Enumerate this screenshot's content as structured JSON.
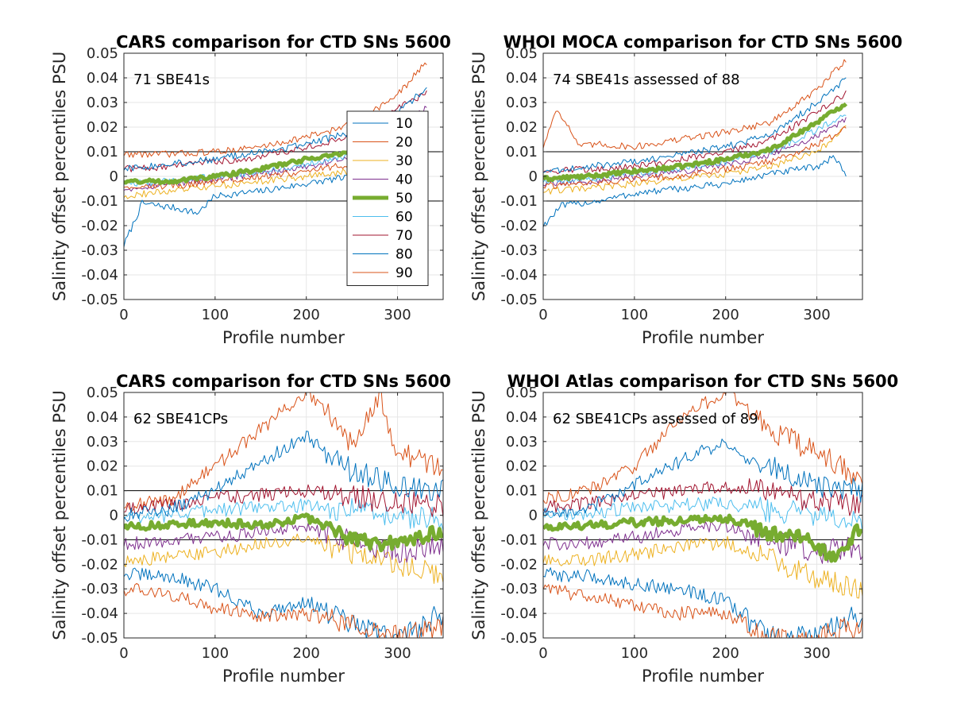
{
  "figure": {
    "palette": {
      "10": "#0072BD",
      "20": "#D95319",
      "30": "#EDB120",
      "40": "#7E2F8E",
      "50": "#77AC30",
      "60": "#4DBEEE",
      "70": "#A2142F",
      "80": "#0072BD",
      "90": "#D95319"
    },
    "axis_color": "#262626",
    "grid_color": "#e6e6e6",
    "ref_line_color": "#000000"
  },
  "chart_data": [
    {
      "type": "line",
      "title": "CARS comparison for CTD SNs 5600",
      "annotation": "71 SBE41s",
      "xlabel": "Profile number",
      "ylabel": "Salinity offset percentiles PSU",
      "xlim": [
        0,
        350
      ],
      "ylim": [
        -0.05,
        0.05
      ],
      "xticks": [
        "0",
        "100",
        "200",
        "300"
      ],
      "yticks": [
        "0.05",
        "0.04",
        "0.03",
        "0.02",
        "0.01",
        "0",
        "-0.01",
        "-0.02",
        "-0.03",
        "-0.04",
        "-0.05"
      ],
      "ref_lines": [
        0.01,
        -0.01
      ],
      "legend": {
        "entries": [
          "10",
          "20",
          "30",
          "40",
          "50",
          "60",
          "70",
          "80",
          "90"
        ],
        "placement": "center-right"
      },
      "x_end": 333,
      "series": [
        {
          "name": "10",
          "x": [
            0,
            20,
            60,
            80,
            100,
            150,
            200,
            250,
            300,
            333
          ],
          "values": [
            -0.028,
            -0.011,
            -0.013,
            -0.015,
            -0.008,
            -0.006,
            -0.003,
            0.0,
            0.004,
            0.006
          ]
        },
        {
          "name": "20",
          "x": [
            0,
            50,
            100,
            150,
            200,
            250,
            300,
            333
          ],
          "values": [
            0.009,
            0.009,
            0.01,
            0.012,
            0.016,
            0.021,
            0.033,
            0.047
          ]
        },
        {
          "name": "30",
          "x": [
            0,
            50,
            100,
            150,
            200,
            250,
            300,
            333
          ],
          "values": [
            -0.008,
            -0.006,
            -0.004,
            -0.002,
            0.0,
            0.002,
            0.005,
            0.008
          ]
        },
        {
          "name": "40",
          "x": [
            0,
            50,
            100,
            150,
            200,
            250,
            300,
            333
          ],
          "values": [
            -0.005,
            -0.003,
            -0.001,
            0.001,
            0.004,
            0.008,
            0.02,
            0.028
          ]
        },
        {
          "name": "50",
          "x": [
            0,
            50,
            100,
            150,
            200,
            250,
            300,
            333
          ],
          "values": [
            -0.002,
            -0.002,
            0.0,
            0.003,
            0.007,
            0.01,
            0.015,
            0.022
          ]
        },
        {
          "name": "60",
          "x": [
            0,
            50,
            100,
            150,
            200,
            250,
            300,
            333
          ],
          "values": [
            -0.003,
            -0.002,
            0.0,
            0.002,
            0.005,
            0.009,
            0.013,
            0.016
          ]
        },
        {
          "name": "70",
          "x": [
            0,
            50,
            100,
            150,
            200,
            250,
            300,
            333
          ],
          "values": [
            0.003,
            0.004,
            0.006,
            0.008,
            0.012,
            0.016,
            0.028,
            0.034
          ]
        },
        {
          "name": "80",
          "x": [
            0,
            50,
            100,
            150,
            200,
            250,
            300,
            333
          ],
          "values": [
            0.003,
            0.005,
            0.007,
            0.01,
            0.013,
            0.018,
            0.026,
            0.036
          ]
        },
        {
          "name": "90",
          "x": [
            0,
            50,
            100,
            150,
            200,
            250,
            300,
            333
          ],
          "values": [
            -0.004,
            -0.004,
            -0.002,
            0.0,
            0.002,
            0.005,
            0.009,
            0.012
          ]
        }
      ]
    },
    {
      "type": "line",
      "title": "WHOI MOCA comparison for CTD SNs 5600",
      "annotation": "74 SBE41s assessed of 88",
      "xlabel": "Profile number",
      "ylabel": "Salinity offset percentiles PSU",
      "xlim": [
        0,
        350
      ],
      "ylim": [
        -0.05,
        0.05
      ],
      "xticks": [
        "0",
        "100",
        "200",
        "300"
      ],
      "yticks": [
        "0.05",
        "0.04",
        "0.03",
        "0.02",
        "0.01",
        "0",
        "-0.01",
        "-0.02",
        "-0.03",
        "-0.04",
        "-0.05"
      ],
      "ref_lines": [
        0.01,
        -0.01
      ],
      "x_end": 333,
      "series": [
        {
          "name": "10",
          "x": [
            0,
            20,
            60,
            100,
            150,
            200,
            250,
            300,
            320,
            333
          ],
          "values": [
            -0.02,
            -0.012,
            -0.01,
            -0.007,
            -0.005,
            -0.003,
            0.001,
            0.004,
            0.008,
            0.0
          ]
        },
        {
          "name": "20",
          "x": [
            0,
            15,
            40,
            60,
            100,
            150,
            200,
            250,
            300,
            333
          ],
          "values": [
            0.012,
            0.028,
            0.012,
            0.013,
            0.012,
            0.015,
            0.018,
            0.022,
            0.035,
            0.048
          ]
        },
        {
          "name": "30",
          "x": [
            0,
            50,
            100,
            150,
            200,
            250,
            300,
            333
          ],
          "values": [
            -0.006,
            -0.005,
            -0.003,
            -0.001,
            0.001,
            0.004,
            0.01,
            0.02
          ]
        },
        {
          "name": "40",
          "x": [
            0,
            50,
            100,
            150,
            200,
            250,
            300,
            333
          ],
          "values": [
            -0.003,
            -0.002,
            0.0,
            0.002,
            0.005,
            0.009,
            0.016,
            0.024
          ]
        },
        {
          "name": "50",
          "x": [
            0,
            50,
            100,
            150,
            200,
            250,
            300,
            333
          ],
          "values": [
            -0.001,
            0.0,
            0.002,
            0.004,
            0.007,
            0.011,
            0.022,
            0.03
          ]
        },
        {
          "name": "60",
          "x": [
            0,
            50,
            100,
            150,
            200,
            250,
            300,
            333
          ],
          "values": [
            -0.002,
            -0.001,
            0.001,
            0.003,
            0.006,
            0.01,
            0.019,
            0.026
          ]
        },
        {
          "name": "70",
          "x": [
            0,
            50,
            100,
            150,
            200,
            250,
            300,
            333
          ],
          "values": [
            0.002,
            0.003,
            0.004,
            0.007,
            0.01,
            0.015,
            0.026,
            0.034
          ]
        },
        {
          "name": "80",
          "x": [
            0,
            50,
            100,
            150,
            200,
            250,
            300,
            333
          ],
          "values": [
            0.002,
            0.004,
            0.006,
            0.009,
            0.012,
            0.017,
            0.03,
            0.04
          ]
        },
        {
          "name": "90",
          "x": [
            0,
            50,
            100,
            150,
            200,
            250,
            300,
            333
          ],
          "values": [
            -0.004,
            -0.003,
            -0.001,
            0.0,
            0.003,
            0.006,
            0.013,
            0.02
          ]
        }
      ]
    },
    {
      "type": "line",
      "title": "CARS comparison for CTD SNs 5600",
      "annotation": "62 SBE41CPs",
      "xlabel": "Profile number",
      "ylabel": "Salinity offset percentiles PSU",
      "xlim": [
        0,
        350
      ],
      "ylim": [
        -0.05,
        0.05
      ],
      "xticks": [
        "0",
        "100",
        "200",
        "300"
      ],
      "yticks": [
        "0.05",
        "0.04",
        "0.03",
        "0.02",
        "0.01",
        "0",
        "-0.01",
        "-0.02",
        "-0.03",
        "-0.04",
        "-0.05"
      ],
      "ref_lines": [
        0.01,
        -0.01
      ],
      "x_end": 350,
      "series": [
        {
          "name": "10",
          "x": [
            0,
            50,
            100,
            150,
            200,
            250,
            300,
            350
          ],
          "values": [
            -0.024,
            -0.025,
            -0.03,
            -0.04,
            -0.035,
            -0.045,
            -0.05,
            -0.04
          ]
        },
        {
          "name": "20",
          "x": [
            0,
            50,
            100,
            150,
            200,
            250,
            280,
            300,
            350
          ],
          "values": [
            0.004,
            0.006,
            0.02,
            0.035,
            0.05,
            0.03,
            0.05,
            0.025,
            0.02
          ]
        },
        {
          "name": "30",
          "x": [
            0,
            50,
            100,
            150,
            200,
            250,
            300,
            350
          ],
          "values": [
            -0.019,
            -0.017,
            -0.015,
            -0.012,
            -0.01,
            -0.015,
            -0.02,
            -0.025
          ]
        },
        {
          "name": "40",
          "x": [
            0,
            50,
            100,
            150,
            200,
            250,
            300,
            350
          ],
          "values": [
            -0.012,
            -0.01,
            -0.009,
            -0.007,
            -0.005,
            -0.01,
            -0.015,
            -0.012
          ]
        },
        {
          "name": "50",
          "x": [
            0,
            50,
            100,
            150,
            200,
            250,
            300,
            350
          ],
          "values": [
            -0.005,
            -0.004,
            -0.003,
            -0.004,
            -0.001,
            -0.01,
            -0.012,
            -0.006
          ]
        },
        {
          "name": "60",
          "x": [
            0,
            50,
            100,
            150,
            200,
            250,
            300,
            350
          ],
          "values": [
            -0.001,
            0.0,
            0.002,
            0.003,
            0.004,
            0.002,
            0.0,
            -0.002
          ]
        },
        {
          "name": "70",
          "x": [
            0,
            50,
            100,
            150,
            200,
            250,
            300,
            350
          ],
          "values": [
            0.002,
            0.004,
            0.007,
            0.008,
            0.01,
            0.008,
            0.005,
            0.004
          ]
        },
        {
          "name": "80",
          "x": [
            0,
            50,
            100,
            150,
            200,
            250,
            300,
            350
          ],
          "values": [
            0.0,
            0.002,
            0.01,
            0.022,
            0.032,
            0.018,
            0.012,
            0.01
          ]
        },
        {
          "name": "90",
          "x": [
            0,
            50,
            100,
            150,
            200,
            250,
            300,
            350
          ],
          "values": [
            -0.03,
            -0.032,
            -0.038,
            -0.041,
            -0.04,
            -0.045,
            -0.05,
            -0.045
          ]
        }
      ]
    },
    {
      "type": "line",
      "title": "WHOI Atlas comparison for CTD SNs 5600",
      "annotation": "62 SBE41CPs assessed of 89",
      "xlabel": "Profile number",
      "ylabel": "Salinity offset percentiles PSU",
      "xlim": [
        0,
        350
      ],
      "ylim": [
        -0.05,
        0.05
      ],
      "xticks": [
        "0",
        "100",
        "200",
        "300"
      ],
      "yticks": [
        "0.05",
        "0.04",
        "0.03",
        "0.02",
        "0.01",
        "0",
        "-0.01",
        "-0.02",
        "-0.03",
        "-0.04",
        "-0.05"
      ],
      "ref_lines": [
        0.01,
        -0.01
      ],
      "x_end": 350,
      "series": [
        {
          "name": "10",
          "x": [
            0,
            50,
            100,
            150,
            200,
            250,
            300,
            350
          ],
          "values": [
            -0.024,
            -0.025,
            -0.028,
            -0.03,
            -0.035,
            -0.05,
            -0.05,
            -0.04
          ]
        },
        {
          "name": "20",
          "x": [
            0,
            50,
            100,
            150,
            200,
            250,
            300,
            350
          ],
          "values": [
            0.007,
            0.01,
            0.02,
            0.04,
            0.05,
            0.035,
            0.025,
            0.015
          ]
        },
        {
          "name": "30",
          "x": [
            0,
            50,
            100,
            150,
            200,
            250,
            300,
            350
          ],
          "values": [
            -0.019,
            -0.018,
            -0.016,
            -0.013,
            -0.011,
            -0.018,
            -0.025,
            -0.03
          ]
        },
        {
          "name": "40",
          "x": [
            0,
            50,
            100,
            150,
            200,
            250,
            300,
            350
          ],
          "values": [
            -0.012,
            -0.011,
            -0.009,
            -0.006,
            -0.004,
            -0.01,
            -0.015,
            -0.013
          ]
        },
        {
          "name": "50",
          "x": [
            0,
            50,
            100,
            150,
            200,
            250,
            280,
            300,
            320,
            350
          ],
          "values": [
            -0.005,
            -0.004,
            -0.003,
            -0.002,
            -0.001,
            -0.008,
            -0.008,
            -0.012,
            -0.018,
            -0.004
          ]
        },
        {
          "name": "60",
          "x": [
            0,
            50,
            100,
            150,
            200,
            250,
            300,
            350
          ],
          "values": [
            0.0,
            0.001,
            0.003,
            0.004,
            0.005,
            0.002,
            0.0,
            -0.002
          ]
        },
        {
          "name": "70",
          "x": [
            0,
            50,
            100,
            150,
            200,
            250,
            300,
            350
          ],
          "values": [
            0.003,
            0.005,
            0.008,
            0.01,
            0.012,
            0.009,
            0.006,
            0.004
          ]
        },
        {
          "name": "80",
          "x": [
            0,
            50,
            100,
            150,
            200,
            250,
            300,
            350
          ],
          "values": [
            0.0,
            0.003,
            0.012,
            0.022,
            0.03,
            0.02,
            0.012,
            0.01
          ]
        },
        {
          "name": "90",
          "x": [
            0,
            50,
            100,
            150,
            200,
            250,
            300,
            350
          ],
          "values": [
            -0.03,
            -0.033,
            -0.037,
            -0.04,
            -0.04,
            -0.05,
            -0.05,
            -0.045
          ]
        }
      ]
    }
  ]
}
